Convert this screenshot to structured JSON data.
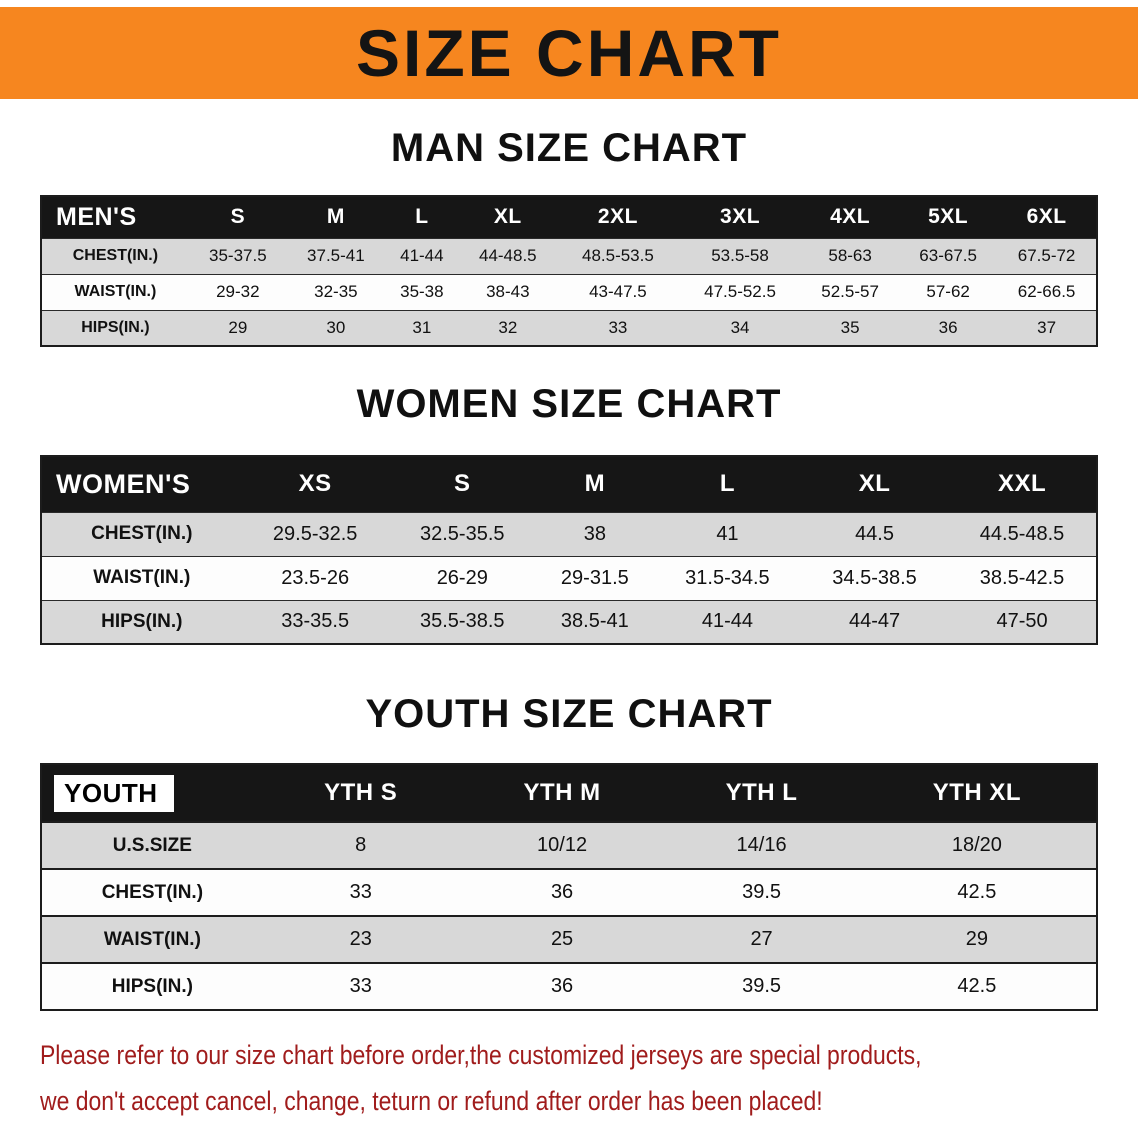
{
  "banner": {
    "title": "SIZE CHART",
    "bg_color": "#f6861f",
    "text_color": "#141414"
  },
  "sections": [
    {
      "id": "men",
      "heading": "MAN SIZE CHART",
      "table": {
        "header": [
          "MEN'S",
          "S",
          "M",
          "L",
          "XL",
          "2XL",
          "3XL",
          "4XL",
          "5XL",
          "6XL"
        ],
        "rows": [
          [
            "CHEST(IN.)",
            "35-37.5",
            "37.5-41",
            "41-44",
            "44-48.5",
            "48.5-53.5",
            "53.5-58",
            "58-63",
            "63-67.5",
            "67.5-72"
          ],
          [
            "WAIST(IN.)",
            "29-32",
            "32-35",
            "35-38",
            "38-43",
            "43-47.5",
            "47.5-52.5",
            "52.5-57",
            "57-62",
            "62-66.5"
          ],
          [
            "HIPS(IN.)",
            "29",
            "30",
            "31",
            "32",
            "33",
            "34",
            "35",
            "36",
            "37"
          ]
        ]
      }
    },
    {
      "id": "women",
      "heading": "WOMEN SIZE CHART",
      "table": {
        "header": [
          "WOMEN'S",
          "XS",
          "S",
          "M",
          "L",
          "XL",
          "XXL"
        ],
        "rows": [
          [
            "CHEST(IN.)",
            "29.5-32.5",
            "32.5-35.5",
            "38",
            "41",
            "44.5",
            "44.5-48.5"
          ],
          [
            "WAIST(IN.)",
            "23.5-26",
            "26-29",
            "29-31.5",
            "31.5-34.5",
            "34.5-38.5",
            "38.5-42.5"
          ],
          [
            "HIPS(IN.)",
            "33-35.5",
            "35.5-38.5",
            "38.5-41",
            "41-44",
            "44-47",
            "47-50"
          ]
        ]
      }
    },
    {
      "id": "youth",
      "heading": "YOUTH SIZE CHART",
      "table": {
        "header": [
          "YOUTH",
          "YTH S",
          "YTH M",
          "YTH L",
          "YTH XL"
        ],
        "rows": [
          [
            "U.S.SIZE",
            "8",
            "10/12",
            "14/16",
            "18/20"
          ],
          [
            "CHEST(IN.)",
            "33",
            "36",
            "39.5",
            "42.5"
          ],
          [
            "WAIST(IN.)",
            "23",
            "25",
            "27",
            "29"
          ],
          [
            "HIPS(IN.)",
            "33",
            "36",
            "39.5",
            "42.5"
          ]
        ]
      }
    }
  ],
  "disclaimer": {
    "color": "#a01c1c",
    "lines": [
      "Please refer to our size chart before order,the customized jerseys are special products,",
      "we don't accept cancel, change, teturn or refund after order has been placed!"
    ]
  }
}
